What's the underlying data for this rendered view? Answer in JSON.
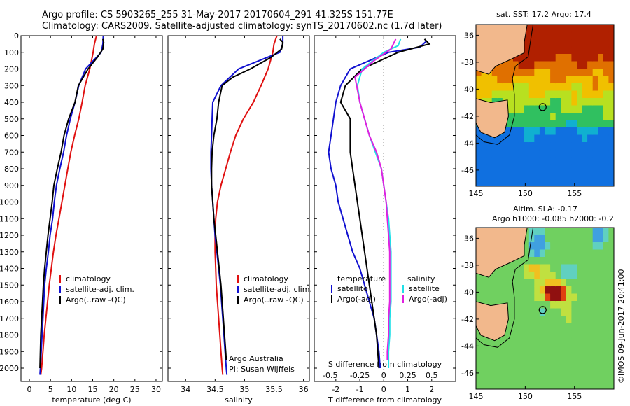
{
  "header": {
    "line1": "Argo profile: CS 5903265_255 31-May-2017 20170604_291 41.325S 151.77E",
    "line2": "Climatology: CARS2009. Satellite-adjusted climatology: synTS_20170602.nc (1.7d later)"
  },
  "colors": {
    "climatology": "#e01010",
    "satellite": "#1010d0",
    "argo": "#000000",
    "cyan": "#20e0e8",
    "magenta": "#e020e0"
  },
  "chart_data": [
    {
      "type": "line",
      "name": "temperature-profile",
      "xlabel": "temperature (deg C)",
      "ylabel": "",
      "xlim": [
        -2,
        31.5
      ],
      "ylim": [
        2080,
        0
      ],
      "xticks": [
        0,
        5,
        10,
        15,
        20,
        25,
        30
      ],
      "yticks": [
        0,
        100,
        200,
        300,
        400,
        500,
        600,
        700,
        800,
        900,
        1000,
        1100,
        1200,
        1300,
        1400,
        1500,
        1600,
        1700,
        1800,
        1900,
        2000
      ],
      "legend": [
        "climatology",
        "satellite-adj. clim.",
        "Argo(..raw -QC)"
      ],
      "series": [
        {
          "name": "climatology",
          "color": "climatology",
          "points": [
            [
              15.9,
              0
            ],
            [
              15.4,
              50
            ],
            [
              15.1,
              100
            ],
            [
              14.3,
              200
            ],
            [
              13.2,
              300
            ],
            [
              12.5,
              400
            ],
            [
              11.7,
              500
            ],
            [
              10.7,
              600
            ],
            [
              9.8,
              700
            ],
            [
              9.1,
              800
            ],
            [
              8.4,
              900
            ],
            [
              7.7,
              1000
            ],
            [
              7.0,
              1100
            ],
            [
              6.3,
              1200
            ],
            [
              5.7,
              1300
            ],
            [
              5.2,
              1400
            ],
            [
              4.7,
              1500
            ],
            [
              4.3,
              1600
            ],
            [
              3.9,
              1700
            ],
            [
              3.5,
              1800
            ],
            [
              3.2,
              1900
            ],
            [
              2.9,
              2000
            ],
            [
              2.7,
              2040
            ]
          ]
        },
        {
          "name": "satellite-adj. clim.",
          "color": "satellite",
          "points": [
            [
              17.5,
              0
            ],
            [
              17.4,
              50
            ],
            [
              17.0,
              100
            ],
            [
              13.3,
              200
            ],
            [
              11.7,
              300
            ],
            [
              10.8,
              400
            ],
            [
              9.7,
              500
            ],
            [
              8.8,
              600
            ],
            [
              8.1,
              700
            ],
            [
              7.2,
              800
            ],
            [
              6.4,
              900
            ],
            [
              5.9,
              1000
            ],
            [
              5.5,
              1100
            ],
            [
              4.9,
              1200
            ],
            [
              4.5,
              1300
            ],
            [
              4.0,
              1400
            ],
            [
              3.6,
              1500
            ],
            [
              3.4,
              1600
            ],
            [
              3.2,
              1700
            ],
            [
              3.0,
              1800
            ],
            [
              2.8,
              1900
            ],
            [
              2.6,
              2000
            ],
            [
              2.5,
              2040
            ]
          ]
        },
        {
          "name": "Argo(..raw -QC)",
          "color": "argo",
          "points": [
            [
              17.4,
              20
            ],
            [
              17.6,
              40
            ],
            [
              17.4,
              80
            ],
            [
              16.1,
              130
            ],
            [
              13.9,
              200
            ],
            [
              11.6,
              300
            ],
            [
              10.8,
              400
            ],
            [
              9.3,
              500
            ],
            [
              8.2,
              600
            ],
            [
              7.5,
              700
            ],
            [
              6.6,
              800
            ],
            [
              5.8,
              900
            ],
            [
              5.4,
              1000
            ],
            [
              4.9,
              1100
            ],
            [
              4.4,
              1200
            ],
            [
              4.0,
              1300
            ],
            [
              3.6,
              1400
            ],
            [
              3.3,
              1500
            ],
            [
              3.1,
              1600
            ],
            [
              2.9,
              1700
            ],
            [
              2.7,
              1800
            ],
            [
              2.6,
              1900
            ],
            [
              2.5,
              2000
            ]
          ]
        }
      ]
    },
    {
      "type": "line",
      "name": "salinity-profile",
      "xlabel": "salinity",
      "xlim": [
        33.7,
        36.1
      ],
      "ylim": [
        2080,
        0
      ],
      "xticks": [
        34,
        34.5,
        35,
        35.5,
        36
      ],
      "legend": [
        "climatology",
        "satellite-adj. clim.",
        "Argo(..raw -QC)"
      ],
      "annotation": [
        "Argo Australia",
        "PI: Susan Wijffels"
      ],
      "series": [
        {
          "name": "climatology",
          "color": "climatology",
          "points": [
            [
              35.55,
              0
            ],
            [
              35.5,
              50
            ],
            [
              35.48,
              100
            ],
            [
              35.4,
              200
            ],
            [
              35.28,
              300
            ],
            [
              35.15,
              400
            ],
            [
              34.98,
              500
            ],
            [
              34.85,
              600
            ],
            [
              34.76,
              700
            ],
            [
              34.68,
              800
            ],
            [
              34.6,
              900
            ],
            [
              34.54,
              1000
            ],
            [
              34.51,
              1100
            ],
            [
              34.5,
              1200
            ],
            [
              34.5,
              1300
            ],
            [
              34.51,
              1400
            ],
            [
              34.52,
              1500
            ],
            [
              34.54,
              1600
            ],
            [
              34.56,
              1700
            ],
            [
              34.58,
              1800
            ],
            [
              34.6,
              1900
            ],
            [
              34.62,
              2000
            ],
            [
              34.63,
              2040
            ]
          ]
        },
        {
          "name": "satellite-adj. clim.",
          "color": "satellite",
          "points": [
            [
              35.65,
              0
            ],
            [
              35.65,
              50
            ],
            [
              35.6,
              100
            ],
            [
              35.25,
              150
            ],
            [
              34.9,
              200
            ],
            [
              34.6,
              300
            ],
            [
              34.46,
              400
            ],
            [
              34.45,
              500
            ],
            [
              34.44,
              600
            ],
            [
              34.43,
              700
            ],
            [
              34.43,
              800
            ],
            [
              34.44,
              900
            ],
            [
              34.46,
              1000
            ],
            [
              34.48,
              1100
            ],
            [
              34.5,
              1200
            ],
            [
              34.53,
              1300
            ],
            [
              34.56,
              1400
            ],
            [
              34.59,
              1500
            ],
            [
              34.61,
              1600
            ],
            [
              34.63,
              1700
            ],
            [
              34.65,
              1800
            ],
            [
              34.67,
              1900
            ],
            [
              34.69,
              2000
            ],
            [
              34.7,
              2040
            ]
          ]
        },
        {
          "name": "Argo(..raw -QC)",
          "color": "argo",
          "points": [
            [
              35.6,
              20
            ],
            [
              35.65,
              40
            ],
            [
              35.63,
              80
            ],
            [
              35.45,
              130
            ],
            [
              35.1,
              200
            ],
            [
              34.8,
              250
            ],
            [
              34.62,
              300
            ],
            [
              34.56,
              400
            ],
            [
              34.53,
              500
            ],
            [
              34.48,
              600
            ],
            [
              34.45,
              700
            ],
            [
              34.44,
              800
            ],
            [
              34.44,
              900
            ],
            [
              34.46,
              1000
            ],
            [
              34.48,
              1100
            ],
            [
              34.51,
              1200
            ],
            [
              34.54,
              1300
            ],
            [
              34.57,
              1400
            ],
            [
              34.6,
              1500
            ],
            [
              34.62,
              1600
            ],
            [
              34.64,
              1700
            ],
            [
              34.66,
              1800
            ],
            [
              34.68,
              1900
            ],
            [
              34.69,
              1950
            ]
          ]
        }
      ]
    },
    {
      "type": "line",
      "name": "difference-profile",
      "xlabel": "T difference from climatology",
      "xlabel_top": "S difference from climatology",
      "xlim": [
        -2.9,
        3.0
      ],
      "ylim": [
        2080,
        0
      ],
      "xticks": [
        -2,
        -1,
        0,
        1,
        2
      ],
      "xticks_top": [
        "-0.5",
        "-0.25",
        "0",
        "0.25",
        "0.5"
      ],
      "legend_left": [
        "temperature",
        "satellite",
        "Argo(-adj)"
      ],
      "legend_right": [
        "salinity",
        "satellite",
        "Argo(-adj)"
      ],
      "series": [
        {
          "name": "temperature satellite",
          "color": "satellite",
          "points": [
            [
              1.8,
              30
            ],
            [
              1.5,
              70
            ],
            [
              0.2,
              100
            ],
            [
              -1.4,
              200
            ],
            [
              -1.8,
              300
            ],
            [
              -2.0,
              400
            ],
            [
              -2.2,
              600
            ],
            [
              -2.3,
              700
            ],
            [
              -2.2,
              800
            ],
            [
              -2.0,
              900
            ],
            [
              -1.9,
              1000
            ],
            [
              -1.7,
              1100
            ],
            [
              -1.5,
              1200
            ],
            [
              -1.3,
              1300
            ],
            [
              -1.0,
              1400
            ],
            [
              -0.8,
              1500
            ],
            [
              -0.6,
              1600
            ],
            [
              -0.4,
              1700
            ],
            [
              -0.3,
              1800
            ],
            [
              -0.2,
              1900
            ],
            [
              -0.15,
              2000
            ]
          ]
        },
        {
          "name": "temperature Argo(-adj)",
          "color": "argo",
          "points": [
            [
              1.7,
              20
            ],
            [
              1.9,
              50
            ],
            [
              0.6,
              100
            ],
            [
              -0.9,
              200
            ],
            [
              -1.6,
              300
            ],
            [
              -1.8,
              400
            ],
            [
              -1.4,
              500
            ],
            [
              -1.4,
              700
            ],
            [
              -1.3,
              800
            ],
            [
              -1.2,
              900
            ],
            [
              -1.1,
              1000
            ],
            [
              -1.0,
              1100
            ],
            [
              -0.9,
              1200
            ],
            [
              -0.8,
              1300
            ],
            [
              -0.7,
              1400
            ],
            [
              -0.6,
              1500
            ],
            [
              -0.5,
              1600
            ],
            [
              -0.4,
              1700
            ],
            [
              -0.3,
              1800
            ],
            [
              -0.25,
              1900
            ],
            [
              -0.2,
              2000
            ]
          ]
        },
        {
          "name": "salinity satellite",
          "color": "cyan",
          "points": [
            [
              0.7,
              20
            ],
            [
              0.6,
              60
            ],
            [
              0.0,
              100
            ],
            [
              -0.9,
              200
            ],
            [
              -1.1,
              300
            ],
            [
              -1.0,
              400
            ],
            [
              -0.8,
              500
            ],
            [
              -0.6,
              600
            ],
            [
              -0.35,
              700
            ],
            [
              -0.1,
              800
            ],
            [
              0.0,
              900
            ],
            [
              0.1,
              1000
            ],
            [
              0.2,
              1100
            ],
            [
              0.25,
              1200
            ],
            [
              0.3,
              1300
            ],
            [
              0.3,
              1400
            ],
            [
              0.3,
              1500
            ],
            [
              0.3,
              1600
            ],
            [
              0.25,
              1700
            ],
            [
              0.25,
              1800
            ],
            [
              0.2,
              1900
            ],
            [
              0.2,
              2000
            ]
          ]
        },
        {
          "name": "salinity Argo(-adj)",
          "color": "magenta",
          "points": [
            [
              0.5,
              20
            ],
            [
              0.3,
              80
            ],
            [
              -0.4,
              150
            ],
            [
              -1.2,
              250
            ],
            [
              -1.0,
              400
            ],
            [
              -0.8,
              500
            ],
            [
              -0.6,
              600
            ],
            [
              -0.3,
              700
            ],
            [
              -0.1,
              800
            ],
            [
              0.0,
              900
            ],
            [
              0.1,
              1000
            ],
            [
              0.15,
              1100
            ],
            [
              0.2,
              1200
            ],
            [
              0.25,
              1300
            ],
            [
              0.25,
              1400
            ],
            [
              0.25,
              1500
            ],
            [
              0.25,
              1600
            ],
            [
              0.2,
              1700
            ],
            [
              0.2,
              1800
            ],
            [
              0.15,
              1900
            ],
            [
              0.15,
              1950
            ]
          ]
        }
      ]
    },
    {
      "type": "heatmap",
      "name": "sst-map",
      "title": "sat. SST: 17.2  Argo: 17.4",
      "xlim": [
        145,
        159
      ],
      "ylim": [
        -47.2,
        -35.2
      ],
      "xticks": [
        145,
        150,
        155
      ],
      "yticks": [
        -36,
        -38,
        -40,
        -42,
        -44,
        -46
      ],
      "marker": [
        151.77,
        -41.325
      ]
    },
    {
      "type": "heatmap",
      "name": "sla-map",
      "title": [
        "Altim. SLA: -0.17",
        "Argo h1000: -0.085 h2000: -0.2"
      ],
      "xlim": [
        145,
        159
      ],
      "ylim": [
        -47.2,
        -35.2
      ],
      "xticks": [
        145,
        150,
        155
      ],
      "yticks": [
        -36,
        -38,
        -40,
        -42,
        -44,
        -46
      ],
      "marker": [
        151.77,
        -41.325
      ]
    }
  ],
  "side_label": "©IMOS 09-Jun-2017 20:41:00"
}
